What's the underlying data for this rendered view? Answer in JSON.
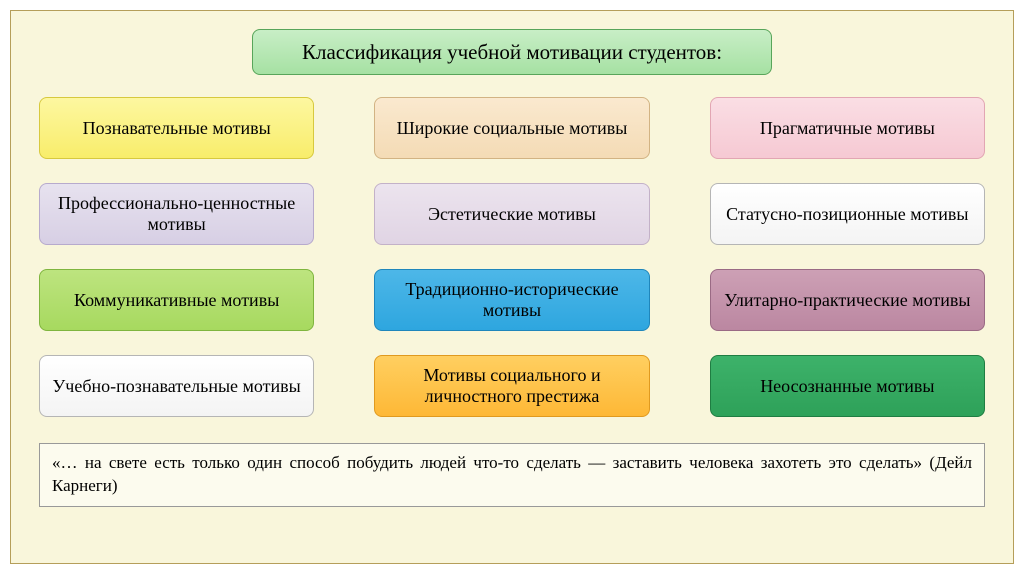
{
  "background_color": "#f9f6db",
  "frame_border_color": "#b59e5a",
  "title": {
    "text": "Классификация учебной мотивации студентов:",
    "bg": "linear-gradient(#c8eec6,#a6e1a3)",
    "border": "#58a55a",
    "fontsize": 21
  },
  "grid": {
    "columns": 3,
    "rows": 4,
    "cell_fontsize": 18,
    "cell_radius": 8,
    "cells": [
      {
        "label": "Познавательные мотивы",
        "bg": "linear-gradient(#fdf7a0,#f8ed6b)",
        "border": "#d7c93e",
        "color": "#000"
      },
      {
        "label": "Широкие социальные мотивы",
        "bg": "linear-gradient(#fae9cf,#f4dbb5)",
        "border": "#d2b383",
        "color": "#000"
      },
      {
        "label": "Прагматичные мотивы",
        "bg": "linear-gradient(#fadee4,#f6c9d3)",
        "border": "#e2a6b3",
        "color": "#000"
      },
      {
        "label": "Профессионально-ценностные мотивы",
        "bg": "linear-gradient(#e7e2ef,#d7cfe4)",
        "border": "#b7aacd",
        "color": "#000"
      },
      {
        "label": "Эстетические мотивы",
        "bg": "linear-gradient(#ece4ee,#e0d4e4)",
        "border": "#c3b1c8",
        "color": "#000"
      },
      {
        "label": "Статусно-позиционные мотивы",
        "bg": "linear-gradient(#ffffff,#f4f4f4)",
        "border": "#b5b5b5",
        "color": "#000"
      },
      {
        "label": "Коммуникативные мотивы",
        "bg": "linear-gradient(#bde47f,#a7d95f)",
        "border": "#7fb53e",
        "color": "#000"
      },
      {
        "label": "Традиционно-исторические мотивы",
        "bg": "linear-gradient(#4db7e8,#2ea6df)",
        "border": "#1f86bb",
        "color": "#000"
      },
      {
        "label": "Улитарно-практические мотивы",
        "bg": "linear-gradient(#cda0b5,#bb87a1)",
        "border": "#9a6a84",
        "color": "#000"
      },
      {
        "label": "Учебно-познавательные мотивы",
        "bg": "linear-gradient(#ffffff,#f4f4f4)",
        "border": "#b5b5b5",
        "color": "#000"
      },
      {
        "label": "Мотивы социального и личностного престижа",
        "bg": "linear-gradient(#ffcf60,#feb836)",
        "border": "#e09a1f",
        "color": "#000"
      },
      {
        "label": "Неосознанные мотивы",
        "bg": "linear-gradient(#3db26a,#2ea159)",
        "border": "#1f7d42",
        "color": "#000"
      }
    ]
  },
  "quote": {
    "text": "«… на свете есть только один способ побудить людей что-то сделать — заставить человека захотеть это сделать» (Дейл Карнеги)",
    "bg": "#fcfbee",
    "border": "#999999",
    "fontsize": 17
  }
}
